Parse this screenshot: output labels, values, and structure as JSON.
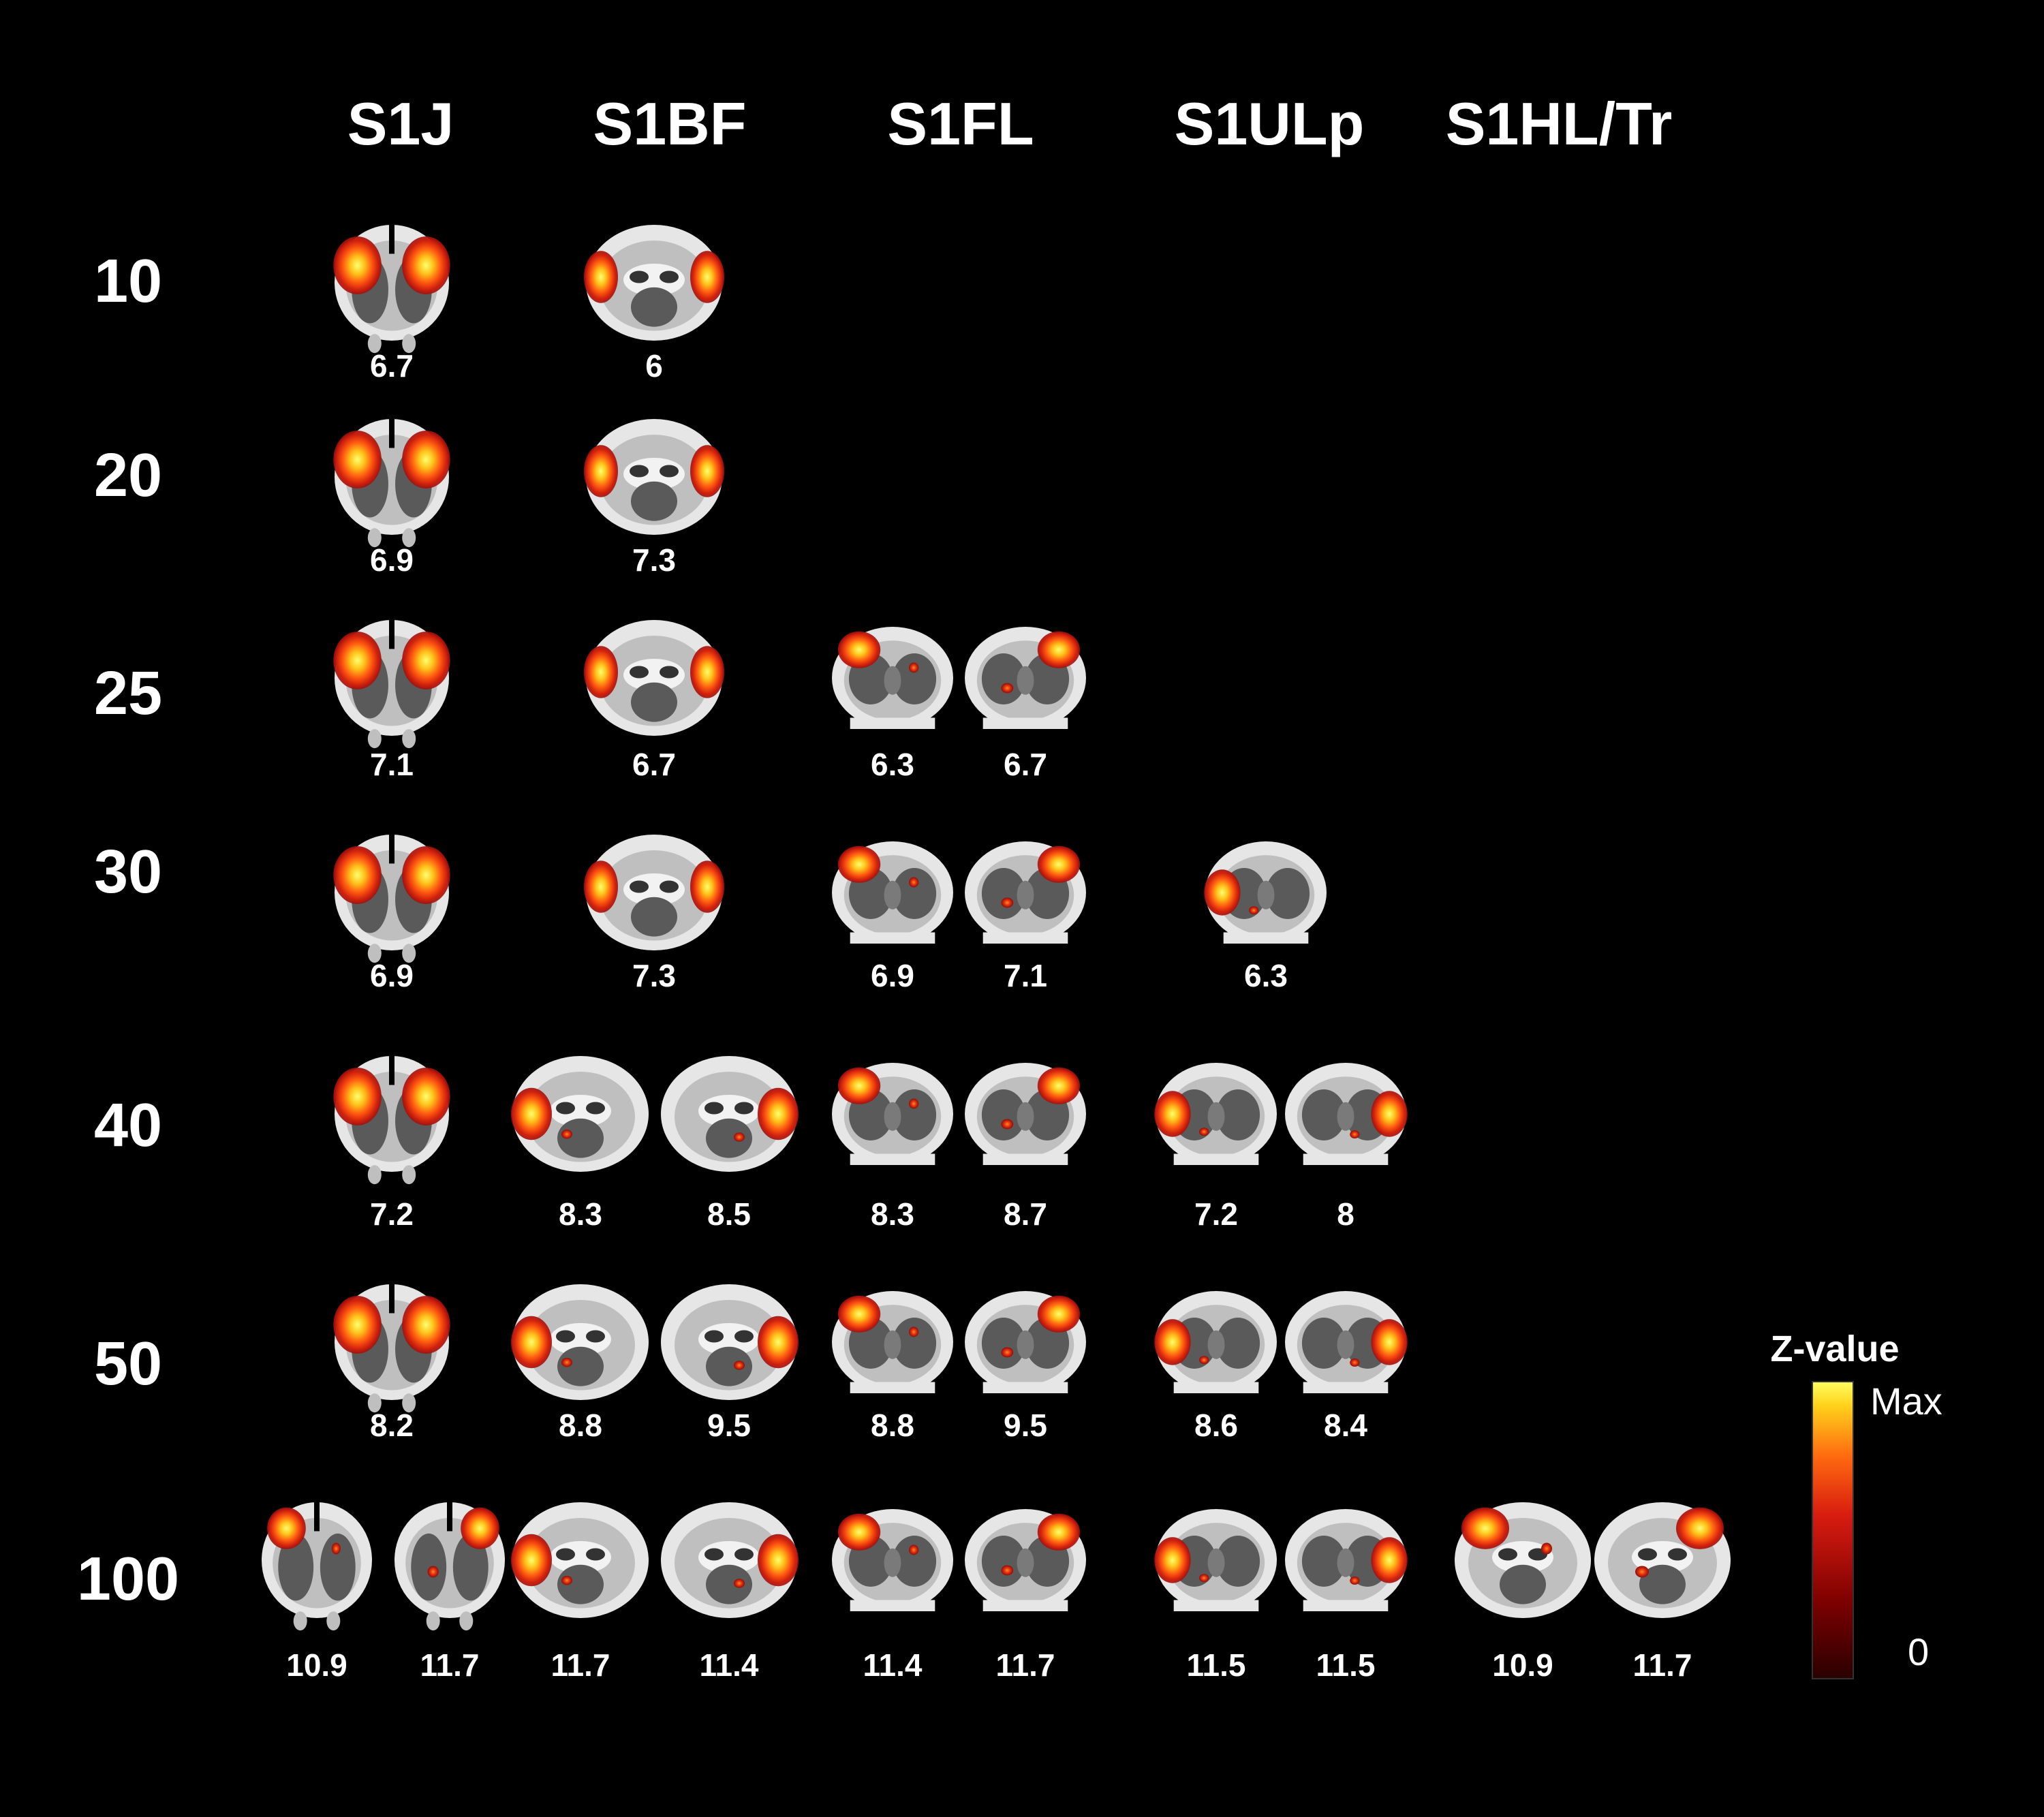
{
  "columns": [
    "S1J",
    "S1BF",
    "S1FL",
    "S1ULp",
    "S1HL/Tr"
  ],
  "rows": [
    {
      "label": "10",
      "cells": [
        {
          "col": "S1J",
          "images": [
            {
              "value": "6.7",
              "view": "anterior",
              "blobs": "bilateral-dorsal"
            }
          ]
        },
        {
          "col": "S1BF",
          "images": [
            {
              "value": "6",
              "view": "middle",
              "blobs": "bilateral-lateral"
            }
          ]
        }
      ]
    },
    {
      "label": "20",
      "cells": [
        {
          "col": "S1J",
          "images": [
            {
              "value": "6.9",
              "view": "anterior",
              "blobs": "bilateral-dorsal"
            }
          ]
        },
        {
          "col": "S1BF",
          "images": [
            {
              "value": "7.3",
              "view": "middle",
              "blobs": "bilateral-lateral"
            }
          ]
        }
      ]
    },
    {
      "label": "25",
      "cells": [
        {
          "col": "S1J",
          "images": [
            {
              "value": "7.1",
              "view": "anterior",
              "blobs": "bilateral-dorsal"
            }
          ]
        },
        {
          "col": "S1BF",
          "images": [
            {
              "value": "6.7",
              "view": "middle",
              "blobs": "bilateral-lateral"
            }
          ]
        },
        {
          "col": "S1FL",
          "images": [
            {
              "value": "6.3",
              "view": "posterior",
              "blobs": "left-dorsal"
            },
            {
              "value": "6.7",
              "view": "posterior",
              "blobs": "right-dorsal"
            }
          ]
        }
      ]
    },
    {
      "label": "30",
      "cells": [
        {
          "col": "S1J",
          "images": [
            {
              "value": "6.9",
              "view": "anterior",
              "blobs": "bilateral-dorsal"
            }
          ]
        },
        {
          "col": "S1BF",
          "images": [
            {
              "value": "7.3",
              "view": "middle",
              "blobs": "bilateral-lateral"
            }
          ]
        },
        {
          "col": "S1FL",
          "images": [
            {
              "value": "6.9",
              "view": "posterior",
              "blobs": "left-dorsal"
            },
            {
              "value": "7.1",
              "view": "posterior",
              "blobs": "right-dorsal"
            }
          ]
        },
        {
          "col": "S1ULp",
          "images": [
            {
              "value": "6.3",
              "view": "posterior",
              "blobs": "left-lateral"
            }
          ]
        }
      ]
    },
    {
      "label": "40",
      "cells": [
        {
          "col": "S1J",
          "images": [
            {
              "value": "7.2",
              "view": "anterior",
              "blobs": "bilateral-dorsal"
            }
          ]
        },
        {
          "col": "S1BF",
          "images": [
            {
              "value": "8.3",
              "view": "middle",
              "blobs": "left-lateral"
            },
            {
              "value": "8.5",
              "view": "middle",
              "blobs": "right-lateral"
            }
          ]
        },
        {
          "col": "S1FL",
          "images": [
            {
              "value": "8.3",
              "view": "posterior",
              "blobs": "left-dorsal"
            },
            {
              "value": "8.7",
              "view": "posterior",
              "blobs": "right-dorsal"
            }
          ]
        },
        {
          "col": "S1ULp",
          "images": [
            {
              "value": "7.2",
              "view": "posterior",
              "blobs": "left-lateral"
            },
            {
              "value": "8",
              "view": "posterior",
              "blobs": "right-lateral"
            }
          ]
        }
      ]
    },
    {
      "label": "50",
      "cells": [
        {
          "col": "S1J",
          "images": [
            {
              "value": "8.2",
              "view": "anterior",
              "blobs": "bilateral-dorsal"
            }
          ]
        },
        {
          "col": "S1BF",
          "images": [
            {
              "value": "8.8",
              "view": "middle",
              "blobs": "left-lateral"
            },
            {
              "value": "9.5",
              "view": "middle",
              "blobs": "right-lateral"
            }
          ]
        },
        {
          "col": "S1FL",
          "images": [
            {
              "value": "8.8",
              "view": "posterior",
              "blobs": "left-dorsal"
            },
            {
              "value": "9.5",
              "view": "posterior",
              "blobs": "right-dorsal"
            }
          ]
        },
        {
          "col": "S1ULp",
          "images": [
            {
              "value": "8.6",
              "view": "posterior",
              "blobs": "left-lateral"
            },
            {
              "value": "8.4",
              "view": "posterior",
              "blobs": "right-lateral"
            }
          ]
        }
      ]
    },
    {
      "label": "100",
      "cells": [
        {
          "col": "S1J",
          "images": [
            {
              "value": "10.9",
              "view": "anterior",
              "blobs": "left-dorsal"
            },
            {
              "value": "11.7",
              "view": "anterior",
              "blobs": "right-dorsal"
            }
          ]
        },
        {
          "col": "S1BF",
          "images": [
            {
              "value": "11.7",
              "view": "middle",
              "blobs": "left-lateral"
            },
            {
              "value": "11.4",
              "view": "middle",
              "blobs": "right-lateral"
            }
          ]
        },
        {
          "col": "S1FL",
          "images": [
            {
              "value": "11.4",
              "view": "posterior",
              "blobs": "left-dorsal"
            },
            {
              "value": "11.7",
              "view": "posterior",
              "blobs": "right-dorsal"
            }
          ]
        },
        {
          "col": "S1ULp",
          "images": [
            {
              "value": "11.5",
              "view": "posterior",
              "blobs": "left-lateral"
            },
            {
              "value": "11.5",
              "view": "posterior",
              "blobs": "right-lateral"
            }
          ]
        },
        {
          "col": "S1HL/Tr",
          "images": [
            {
              "value": "10.9",
              "view": "middle",
              "blobs": "left-dorsal"
            },
            {
              "value": "11.7",
              "view": "middle",
              "blobs": "right-dorsal"
            }
          ]
        }
      ]
    }
  ],
  "colorbar": {
    "title": "Z-value",
    "max_label": "Max",
    "min_label": "0",
    "colors": [
      "#2a0000",
      "#7a0000",
      "#d81c10",
      "#ff6a10",
      "#ffd21a",
      "#ffff60"
    ]
  },
  "colors": {
    "background": "#000000",
    "brain_outer": "#e6e6e6",
    "brain_mid": "#bfbfbf",
    "brain_inner": "#5a5a5a"
  }
}
